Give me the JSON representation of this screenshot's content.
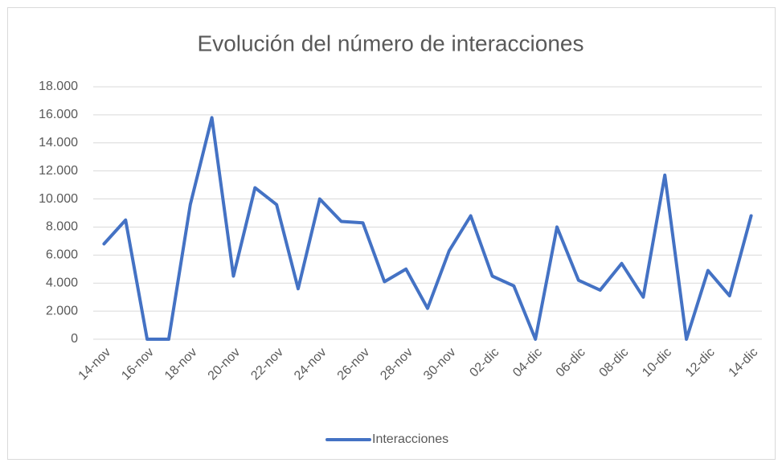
{
  "chart_data": {
    "type": "line",
    "title": "Evolución del número de interacciones",
    "categories": [
      "14-nov",
      null,
      "16-nov",
      null,
      "18-nov",
      null,
      "20-nov",
      null,
      "22-nov",
      null,
      "24-nov",
      null,
      "26-nov",
      null,
      "28-nov",
      null,
      "30-nov",
      null,
      "02-dic",
      null,
      "04-dic",
      null,
      "06-dic",
      null,
      "08-dic",
      null,
      "10-dic",
      null,
      "12-dic",
      null,
      "14-dic"
    ],
    "series": [
      {
        "name": "Interacciones",
        "color": "#4472c4",
        "values": [
          6800,
          8500,
          0,
          0,
          9600,
          15800,
          4500,
          10800,
          9600,
          3600,
          10000,
          8400,
          8300,
          4100,
          5000,
          2200,
          6300,
          8800,
          4500,
          3800,
          0,
          8000,
          4200,
          3500,
          5400,
          3000,
          11700,
          0,
          4900,
          3100,
          8800
        ]
      }
    ],
    "ylim": [
      0,
      18000
    ],
    "yticks": [
      0,
      {
        "value": 2000,
        "label": "2.000"
      },
      {
        "value": 4000,
        "label": "4.000"
      },
      {
        "value": 6000,
        "label": "6.000"
      },
      {
        "value": 8000,
        "label": "8.000"
      },
      {
        "value": 10000,
        "label": "10.000"
      },
      {
        "value": 12000,
        "label": "12.000"
      },
      {
        "value": 14000,
        "label": "14.000"
      },
      {
        "value": 16000,
        "label": "16.000"
      },
      {
        "value": 18000,
        "label": "18.000"
      }
    ],
    "grid": true,
    "legend": "bottom"
  }
}
